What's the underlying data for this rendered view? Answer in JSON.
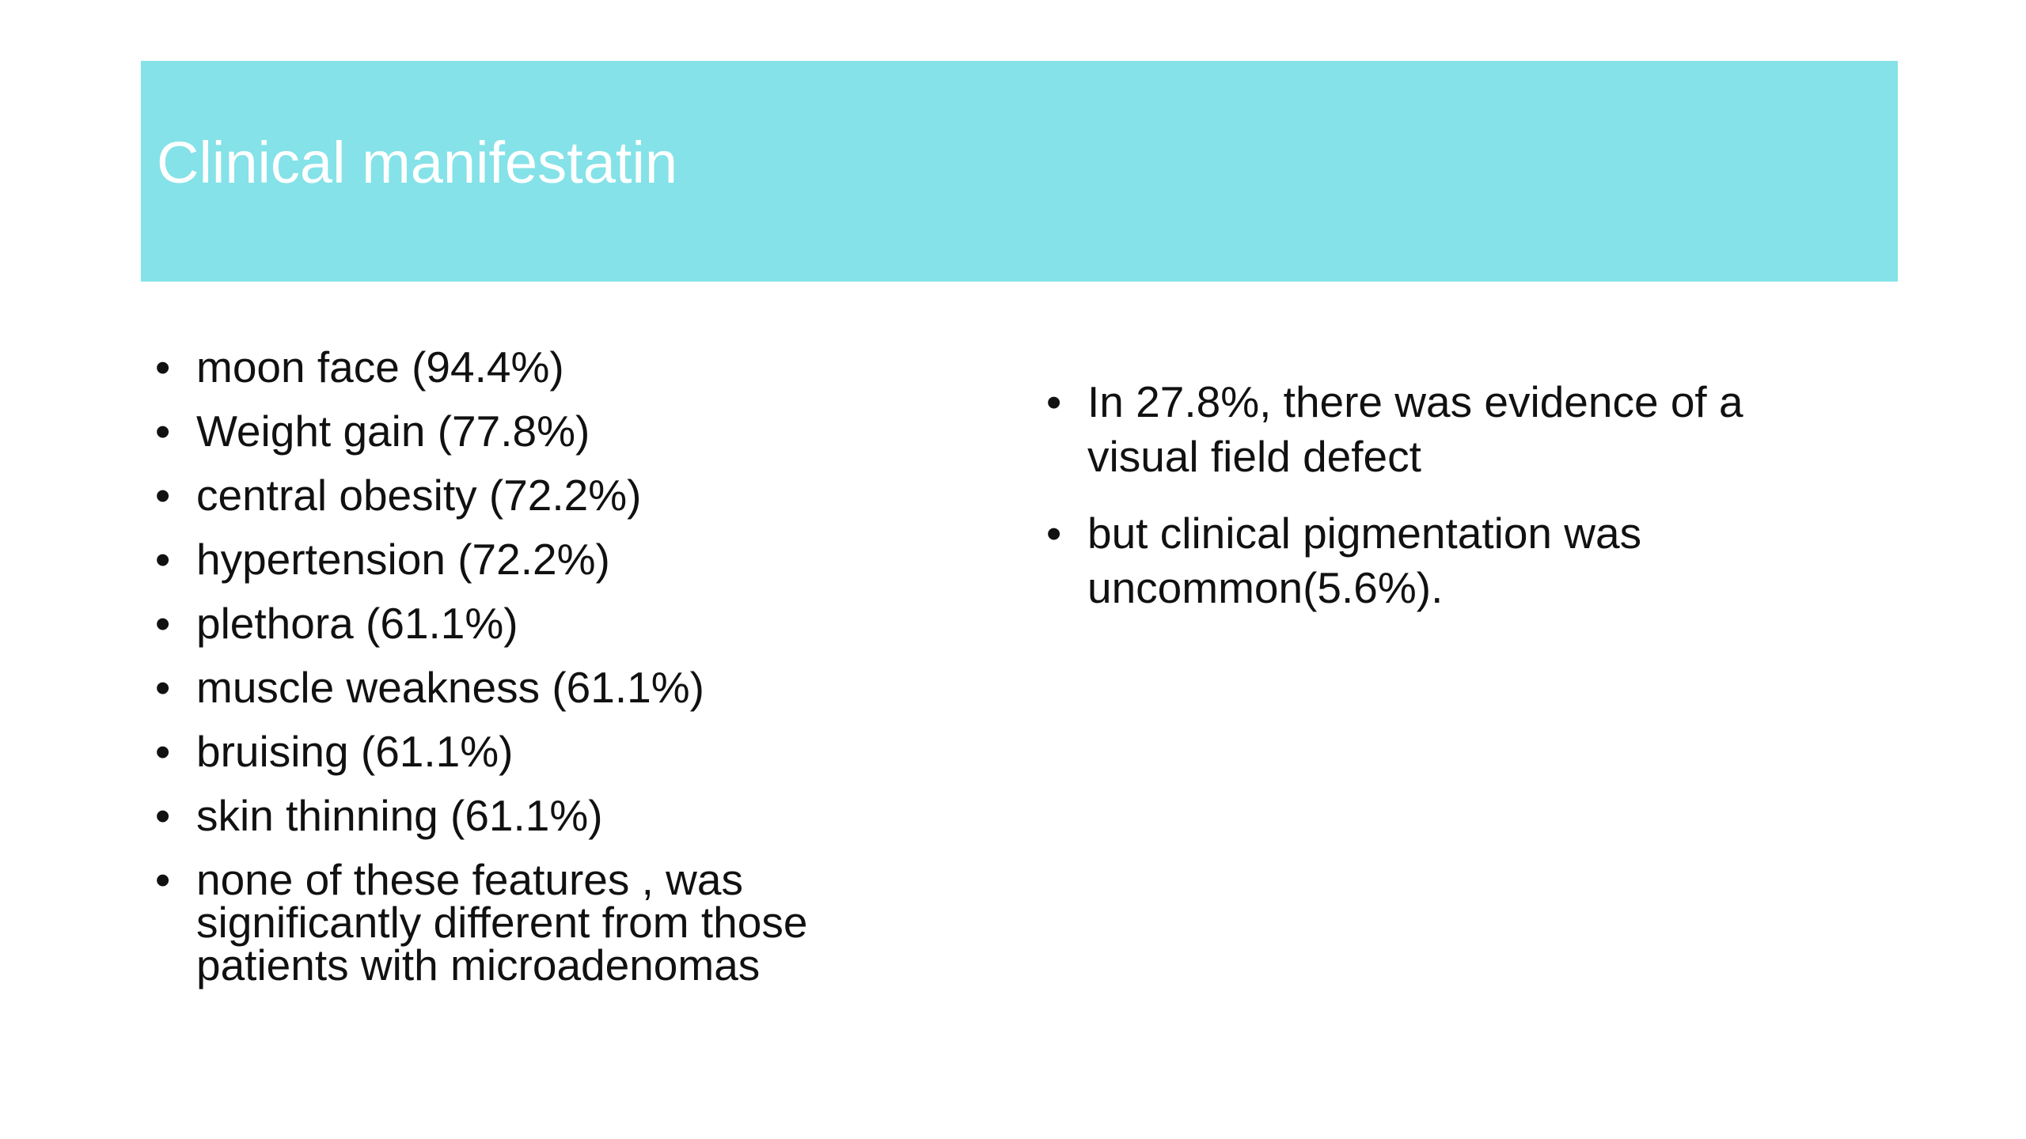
{
  "slide": {
    "title": "Clinical manifestatin"
  },
  "left_column": {
    "items": [
      {
        "text": "moon face (94.4%)"
      },
      {
        "text": "Weight gain (77.8%)"
      },
      {
        "text": "central obesity (72.2%)"
      },
      {
        "text": "hypertension (72.2%)"
      },
      {
        "text": "plethora (61.1%)"
      },
      {
        "text": "muscle weakness (61.1%)"
      },
      {
        "text": "bruising (61.1%)"
      },
      {
        "text": "skin thinning (61.1%)"
      },
      {
        "text": "none of these features , was significantly different from those patients with microadenomas"
      }
    ]
  },
  "right_column": {
    "items": [
      {
        "text": "In 27.8%, there was evidence of a visual field defect"
      },
      {
        "text": "but clinical pigmentation was uncommon(5.6%)."
      }
    ]
  },
  "colors": {
    "header_background": "#84e2e8",
    "title_text": "#ffffff",
    "body_text": "#111111"
  }
}
